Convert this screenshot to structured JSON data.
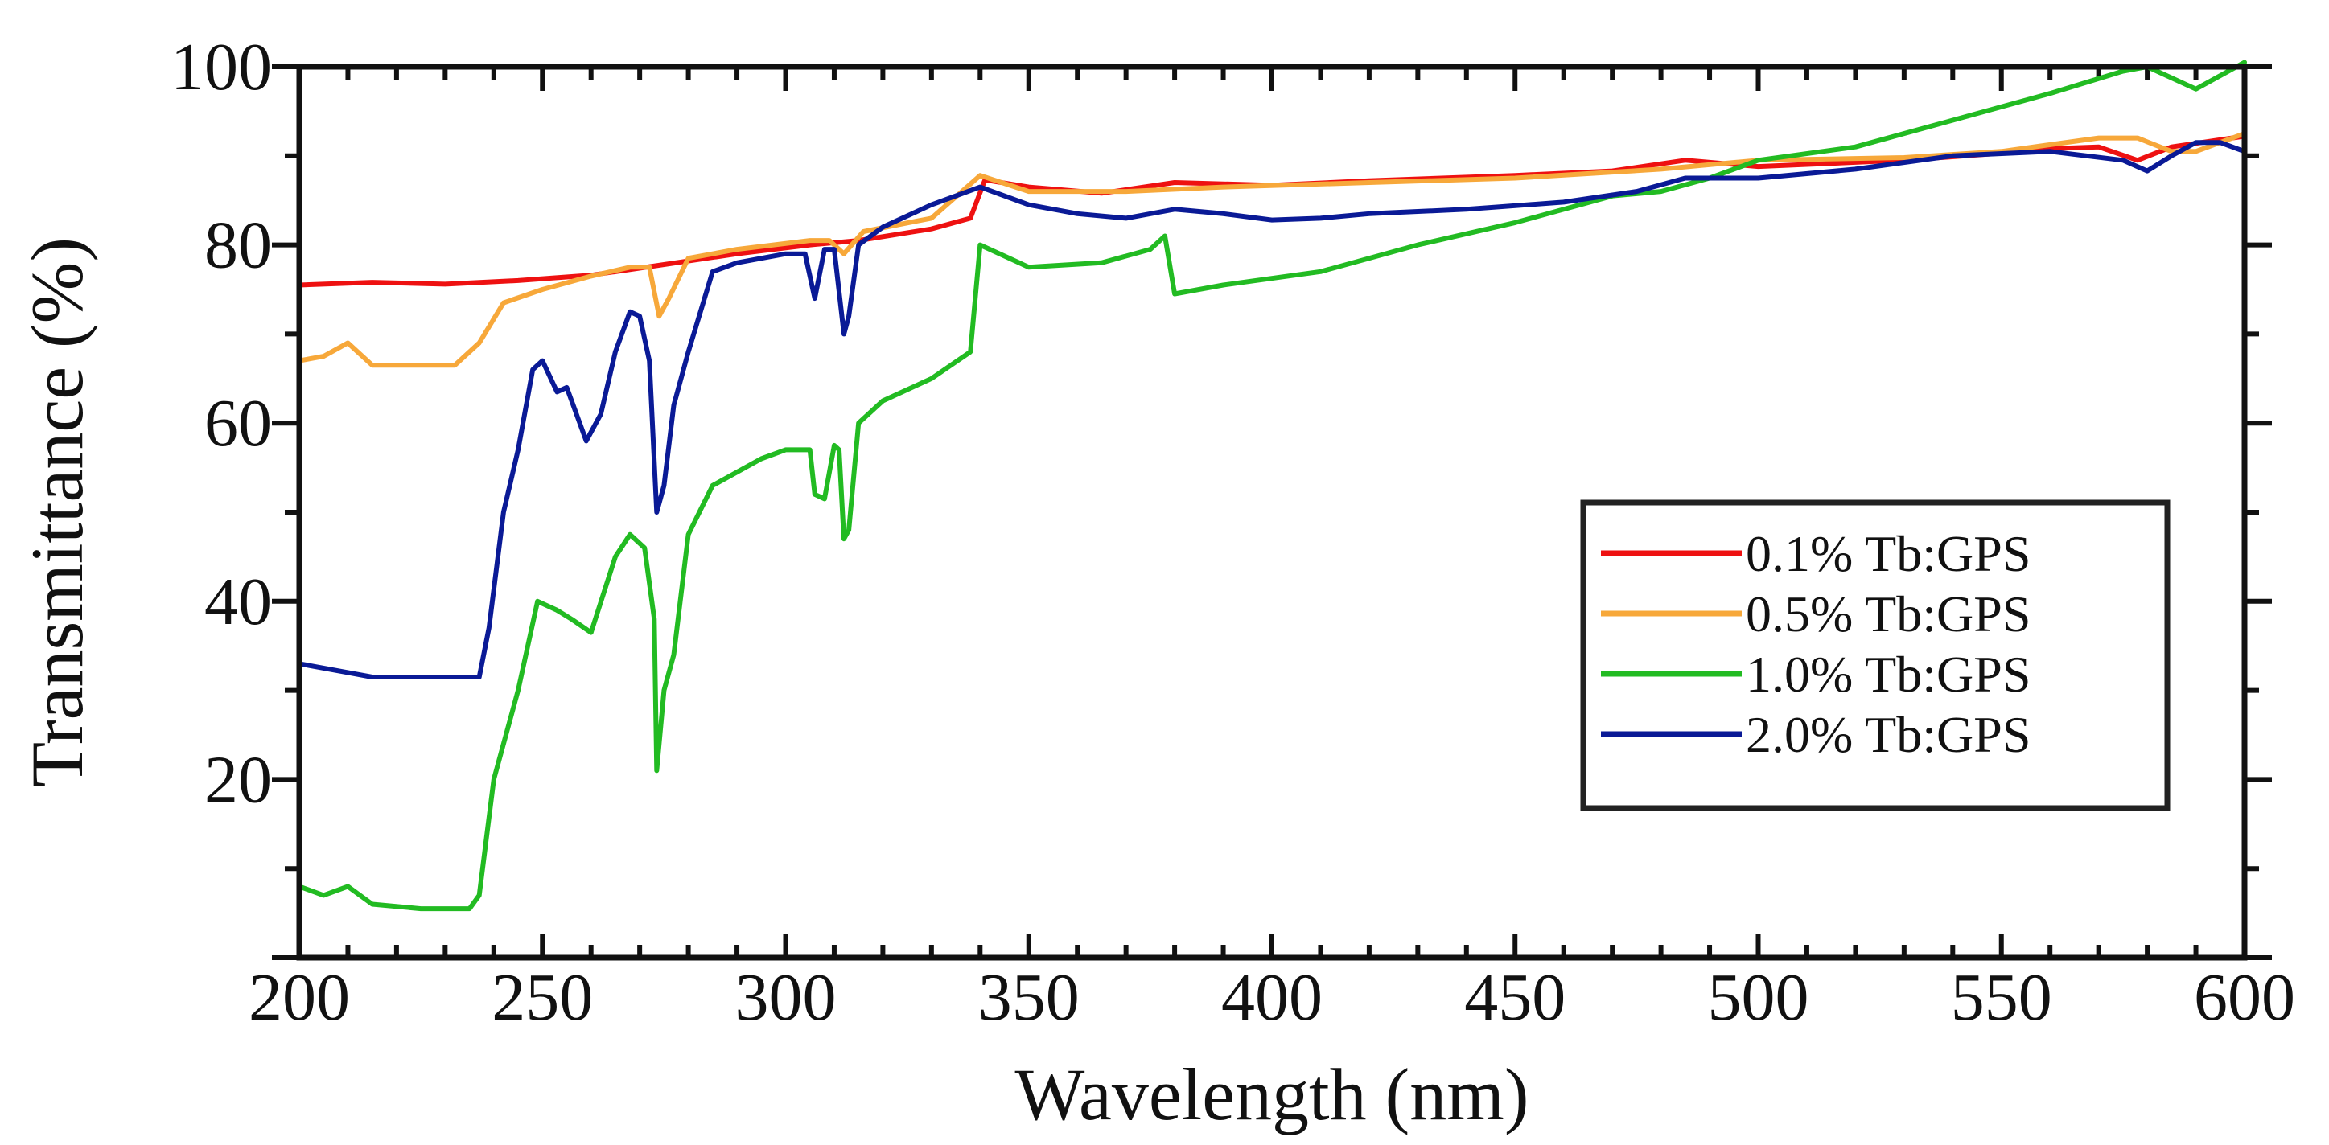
{
  "chart_data": {
    "type": "line",
    "title": "",
    "xlabel": "Wavelength (nm)",
    "ylabel": "Transmittance (%)",
    "xlim": [
      200,
      600
    ],
    "ylim": [
      0,
      100
    ],
    "x_ticks": [
      "200",
      "250",
      "300",
      "350",
      "400",
      "450",
      "500",
      "550",
      "600"
    ],
    "x_tick_values": [
      200,
      250,
      300,
      350,
      400,
      450,
      500,
      550,
      600
    ],
    "y_ticks": [
      "20",
      "40",
      "60",
      "80",
      "100"
    ],
    "y_tick_values": [
      20,
      40,
      60,
      80,
      100
    ],
    "legend_position": "right",
    "series": [
      {
        "name": "0.1% Tb:GPS",
        "color": "#ee1111",
        "points": [
          [
            200,
            75.5
          ],
          [
            215,
            75.8
          ],
          [
            230,
            75.6
          ],
          [
            245,
            76
          ],
          [
            260,
            76.6
          ],
          [
            275,
            77.8
          ],
          [
            290,
            79
          ],
          [
            305,
            80
          ],
          [
            315,
            80.5
          ],
          [
            330,
            81.8
          ],
          [
            338,
            83
          ],
          [
            341,
            87.3
          ],
          [
            350,
            86.5
          ],
          [
            365,
            85.8
          ],
          [
            380,
            87
          ],
          [
            400,
            86.7
          ],
          [
            420,
            87.2
          ],
          [
            450,
            87.8
          ],
          [
            470,
            88.3
          ],
          [
            485,
            89.5
          ],
          [
            500,
            88.8
          ],
          [
            530,
            89.5
          ],
          [
            550,
            90.3
          ],
          [
            560,
            90.8
          ],
          [
            570,
            91
          ],
          [
            578,
            89.5
          ],
          [
            585,
            91
          ],
          [
            600,
            92.2
          ]
        ]
      },
      {
        "name": "0.5% Tb:GPS",
        "color": "#f7a83a",
        "points": [
          [
            200,
            67
          ],
          [
            205,
            67.5
          ],
          [
            210,
            69
          ],
          [
            215,
            66.5
          ],
          [
            220,
            66.5
          ],
          [
            232,
            66.5
          ],
          [
            237,
            69
          ],
          [
            242,
            73.5
          ],
          [
            250,
            75
          ],
          [
            260,
            76.5
          ],
          [
            268,
            77.5
          ],
          [
            272,
            77.5
          ],
          [
            274,
            72
          ],
          [
            276,
            74
          ],
          [
            280,
            78.5
          ],
          [
            290,
            79.5
          ],
          [
            305,
            80.5
          ],
          [
            309,
            80.5
          ],
          [
            312,
            79
          ],
          [
            316,
            81.5
          ],
          [
            330,
            83
          ],
          [
            340,
            87.8
          ],
          [
            350,
            86
          ],
          [
            370,
            86
          ],
          [
            390,
            86.5
          ],
          [
            420,
            87
          ],
          [
            450,
            87.5
          ],
          [
            480,
            88.5
          ],
          [
            500,
            89.5
          ],
          [
            530,
            89.8
          ],
          [
            550,
            90.5
          ],
          [
            570,
            92
          ],
          [
            578,
            92
          ],
          [
            585,
            90.5
          ],
          [
            590,
            90.5
          ],
          [
            600,
            92.5
          ]
        ]
      },
      {
        "name": "1.0% Tb:GPS",
        "color": "#22bb22",
        "points": [
          [
            200,
            8
          ],
          [
            205,
            7
          ],
          [
            210,
            8
          ],
          [
            215,
            6
          ],
          [
            225,
            5.5
          ],
          [
            235,
            5.5
          ],
          [
            237,
            7
          ],
          [
            240,
            20
          ],
          [
            245,
            30
          ],
          [
            249,
            40
          ],
          [
            253,
            39
          ],
          [
            256,
            38
          ],
          [
            260,
            36.5
          ],
          [
            265,
            45
          ],
          [
            268,
            47.5
          ],
          [
            271,
            46
          ],
          [
            273,
            38
          ],
          [
            273.5,
            21
          ],
          [
            275,
            30
          ],
          [
            277,
            34
          ],
          [
            280,
            47.5
          ],
          [
            285,
            53
          ],
          [
            295,
            56
          ],
          [
            300,
            57
          ],
          [
            305,
            57
          ],
          [
            306,
            52
          ],
          [
            308,
            51.5
          ],
          [
            310,
            57.5
          ],
          [
            311,
            57
          ],
          [
            312,
            47
          ],
          [
            313,
            48
          ],
          [
            315,
            60
          ],
          [
            320,
            62.5
          ],
          [
            330,
            65
          ],
          [
            338,
            68
          ],
          [
            340,
            80
          ],
          [
            350,
            77.5
          ],
          [
            365,
            78
          ],
          [
            375,
            79.5
          ],
          [
            378,
            81
          ],
          [
            380,
            74.5
          ],
          [
            390,
            75.5
          ],
          [
            410,
            77
          ],
          [
            430,
            80
          ],
          [
            450,
            82.5
          ],
          [
            470,
            85.5
          ],
          [
            480,
            86
          ],
          [
            490,
            87.5
          ],
          [
            500,
            89.5
          ],
          [
            520,
            91
          ],
          [
            540,
            94
          ],
          [
            560,
            97
          ],
          [
            575,
            99.5
          ],
          [
            580,
            100
          ],
          [
            590,
            97.5
          ],
          [
            600,
            100.5
          ]
        ]
      },
      {
        "name": "2.0% Tb:GPS",
        "color": "#0a1a96",
        "points": [
          [
            200,
            33
          ],
          [
            210,
            32
          ],
          [
            215,
            31.5
          ],
          [
            225,
            31.5
          ],
          [
            237,
            31.5
          ],
          [
            239,
            37
          ],
          [
            242,
            50
          ],
          [
            245,
            57
          ],
          [
            248,
            66
          ],
          [
            250,
            67
          ],
          [
            253,
            63.5
          ],
          [
            255,
            64
          ],
          [
            257,
            61
          ],
          [
            259,
            58
          ],
          [
            262,
            61
          ],
          [
            265,
            68
          ],
          [
            268,
            72.5
          ],
          [
            270,
            72
          ],
          [
            272,
            67
          ],
          [
            273.5,
            50
          ],
          [
            275,
            53
          ],
          [
            277,
            62
          ],
          [
            280,
            68
          ],
          [
            285,
            77
          ],
          [
            290,
            78
          ],
          [
            300,
            79
          ],
          [
            304,
            79
          ],
          [
            306,
            74
          ],
          [
            308,
            79.5
          ],
          [
            310,
            79.5
          ],
          [
            312,
            70
          ],
          [
            313,
            72
          ],
          [
            315,
            80
          ],
          [
            320,
            82
          ],
          [
            330,
            84.5
          ],
          [
            340,
            86.5
          ],
          [
            350,
            84.5
          ],
          [
            360,
            83.5
          ],
          [
            370,
            83
          ],
          [
            380,
            84
          ],
          [
            390,
            83.5
          ],
          [
            400,
            82.8
          ],
          [
            410,
            83
          ],
          [
            420,
            83.5
          ],
          [
            440,
            84
          ],
          [
            460,
            84.8
          ],
          [
            475,
            86
          ],
          [
            485,
            87.5
          ],
          [
            500,
            87.5
          ],
          [
            520,
            88.5
          ],
          [
            540,
            90
          ],
          [
            560,
            90.5
          ],
          [
            575,
            89.5
          ],
          [
            580,
            88.3
          ],
          [
            585,
            90
          ],
          [
            590,
            91.5
          ],
          [
            595,
            91.5
          ],
          [
            600,
            90.5
          ]
        ]
      }
    ]
  }
}
